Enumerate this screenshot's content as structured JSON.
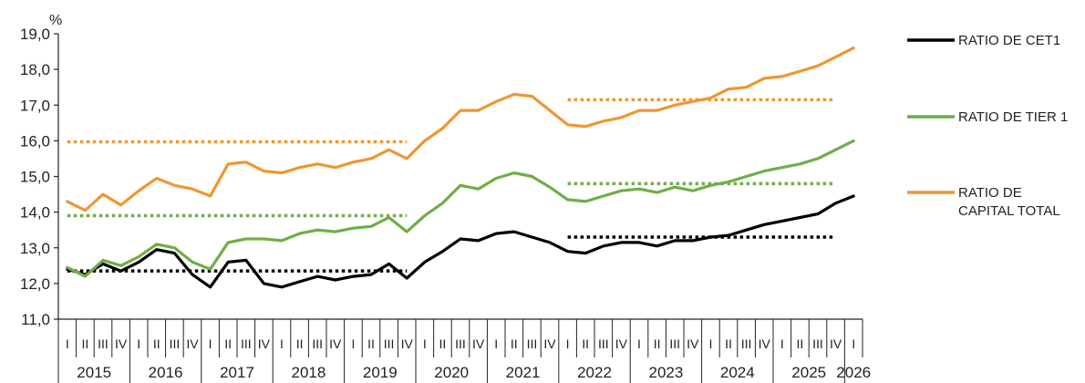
{
  "chart_data": {
    "type": "line",
    "unit": "%",
    "ylim": [
      11.0,
      19.0
    ],
    "yticks": [
      "11,0",
      "12,0",
      "13,0",
      "14,0",
      "15,0",
      "16,0",
      "17,0",
      "18,0",
      "19,0"
    ],
    "quarter_labels": [
      "I",
      "II",
      "III",
      "IV"
    ],
    "years": [
      "2015",
      "2016",
      "2017",
      "2018",
      "2019",
      "2020",
      "2021",
      "2022",
      "2023",
      "2024",
      "2025",
      "2026"
    ],
    "x": [
      "2015-I",
      "2015-II",
      "2015-III",
      "2015-IV",
      "2016-I",
      "2016-II",
      "2016-III",
      "2016-IV",
      "2017-I",
      "2017-II",
      "2017-III",
      "2017-IV",
      "2018-I",
      "2018-II",
      "2018-III",
      "2018-IV",
      "2019-I",
      "2019-II",
      "2019-III",
      "2019-IV",
      "2020-I",
      "2020-II",
      "2020-III",
      "2020-IV",
      "2021-I",
      "2021-II",
      "2021-III",
      "2021-IV",
      "2022-I",
      "2022-II",
      "2022-III",
      "2022-IV",
      "2023-I",
      "2023-II",
      "2023-III",
      "2023-IV",
      "2024-I",
      "2024-II",
      "2024-III",
      "2024-IV",
      "2025-I",
      "2025-II",
      "2025-III",
      "2025-IV",
      "2026-I"
    ],
    "series": [
      {
        "name": "RATIO DE CET1",
        "color": "#000000",
        "values": [
          12.4,
          12.25,
          12.55,
          12.35,
          12.6,
          12.95,
          12.85,
          12.25,
          11.9,
          12.6,
          12.65,
          12.0,
          11.9,
          12.05,
          12.2,
          12.1,
          12.2,
          12.25,
          12.55,
          12.15,
          12.6,
          12.9,
          13.25,
          13.2,
          13.4,
          13.45,
          13.3,
          13.15,
          12.9,
          12.85,
          13.05,
          13.15,
          13.15,
          13.05,
          13.2,
          13.2,
          13.3,
          13.35,
          13.5,
          13.65,
          13.75,
          13.85,
          13.95,
          14.25,
          14.45
        ]
      },
      {
        "name": "RATIO DE TIER 1",
        "color": "#70ad47",
        "values": [
          12.45,
          12.2,
          12.65,
          12.5,
          12.75,
          13.1,
          13.0,
          12.6,
          12.4,
          13.15,
          13.25,
          13.25,
          13.2,
          13.4,
          13.5,
          13.45,
          13.55,
          13.6,
          13.85,
          13.45,
          13.9,
          14.25,
          14.75,
          14.65,
          14.95,
          15.1,
          15.0,
          14.7,
          14.35,
          14.3,
          14.45,
          14.6,
          14.65,
          14.55,
          14.7,
          14.6,
          14.75,
          14.85,
          15.0,
          15.15,
          15.25,
          15.35,
          15.5,
          15.75,
          16.0
        ]
      },
      {
        "name": "RATIO DE CAPITAL TOTAL",
        "color": "#f0962f",
        "values": [
          14.3,
          14.05,
          14.5,
          14.2,
          14.6,
          14.95,
          14.75,
          14.65,
          14.45,
          15.35,
          15.4,
          15.15,
          15.1,
          15.25,
          15.35,
          15.25,
          15.4,
          15.5,
          15.75,
          15.5,
          16.0,
          16.35,
          16.85,
          16.85,
          17.1,
          17.3,
          17.25,
          16.85,
          16.45,
          16.4,
          16.55,
          16.65,
          16.85,
          16.85,
          17.0,
          17.1,
          17.2,
          17.45,
          17.5,
          17.75,
          17.8,
          17.95,
          18.1,
          18.35,
          18.6
        ]
      }
    ],
    "reference_lines": [
      {
        "series": "RATIO DE CET1",
        "color": "#000000",
        "value": 12.35,
        "from": "2015-I",
        "to": "2019-IV"
      },
      {
        "series": "RATIO DE CET1",
        "color": "#000000",
        "value": 13.3,
        "from": "2022-I",
        "to": "2025-IV"
      },
      {
        "series": "RATIO DE TIER 1",
        "color": "#70ad47",
        "value": 13.9,
        "from": "2015-I",
        "to": "2019-IV"
      },
      {
        "series": "RATIO DE TIER 1",
        "color": "#70ad47",
        "value": 14.8,
        "from": "2022-I",
        "to": "2025-IV"
      },
      {
        "series": "RATIO DE CAPITAL TOTAL",
        "color": "#f0962f",
        "value": 15.97,
        "from": "2015-I",
        "to": "2019-IV"
      },
      {
        "series": "RATIO DE CAPITAL TOTAL",
        "color": "#f0962f",
        "value": 17.15,
        "from": "2022-I",
        "to": "2025-IV"
      }
    ],
    "legend": {
      "placement": "right",
      "entries": [
        {
          "lines": [
            "RATIO DE CET1"
          ],
          "color": "#000000"
        },
        {
          "lines": [
            "RATIO DE TIER 1"
          ],
          "color": "#70ad47"
        },
        {
          "lines": [
            "RATIO DE",
            "CAPITAL TOTAL"
          ],
          "color": "#f0962f"
        }
      ]
    },
    "grid": false
  }
}
